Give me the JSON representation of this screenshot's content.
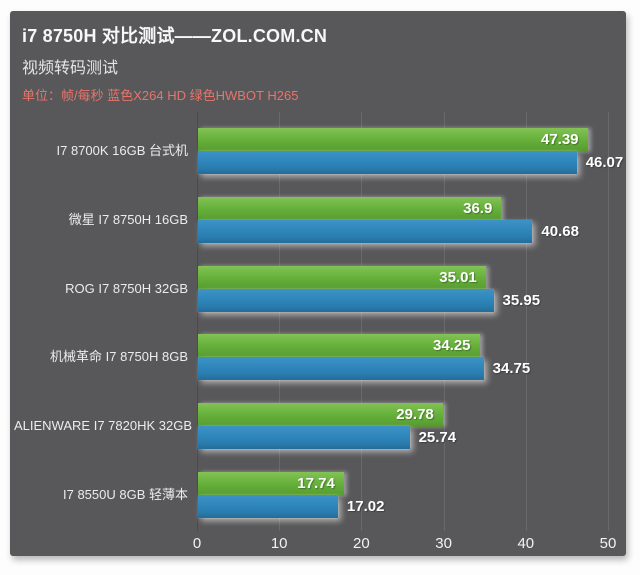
{
  "header": {
    "title": "i7 8750H 对比测试——ZOL.COM.CN",
    "subtitle": "视频转码测试",
    "unit_note": "单位：帧/每秒 蓝色X264 HD 绿色HWBOT H265"
  },
  "colors": {
    "panel_bg": "#58585a",
    "green_bar": "#68b33d",
    "blue_bar": "#2f86ba",
    "unit_text": "#e8746a",
    "gridline": "#696969",
    "axis_line": "#4a4a4a",
    "value_text": "#ffffff"
  },
  "chart_data": {
    "type": "bar",
    "orientation": "horizontal",
    "title": "视频转码测试",
    "unit": "帧/每秒",
    "categories": [
      "I7 8700K 16GB 台式机",
      "微星 I7 8750H 16GB",
      "ROG I7 8750H 32GB",
      "机械革命 I7 8750H 8GB",
      "ALIENWARE I7 7820HK 32GB",
      "I7 8550U 8GB 轻薄本"
    ],
    "series": [
      {
        "name": "HWBOT H265",
        "color": "green",
        "values": [
          47.39,
          36.9,
          35.01,
          34.25,
          29.78,
          17.74
        ]
      },
      {
        "name": "X264 HD",
        "color": "blue",
        "values": [
          46.07,
          40.68,
          35.95,
          34.75,
          25.74,
          17.02
        ]
      }
    ],
    "x_ticks": [
      0,
      10,
      20,
      30,
      40,
      50
    ],
    "xlim": [
      0,
      50
    ],
    "grid": true,
    "legend": "encoded in unit note text (绿色=green series, 蓝色=blue series)"
  }
}
